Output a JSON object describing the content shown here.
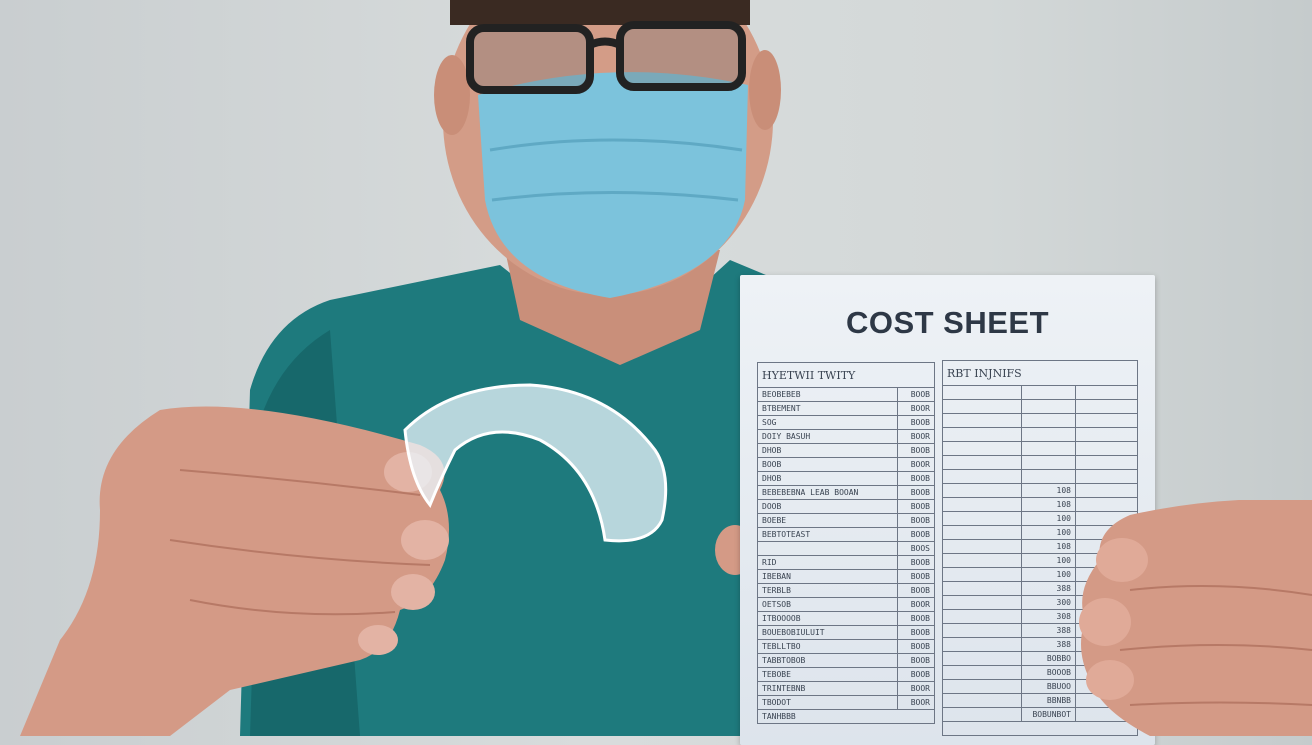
{
  "sheet": {
    "title": "COST SHEET",
    "left_table": {
      "header": "HYETWII TWITY",
      "rows": [
        {
          "label": "BEOBEBEB",
          "value": "BOOB"
        },
        {
          "label": "BTBEMENT",
          "value": "BOOR"
        },
        {
          "label": "SOG",
          "value": "BOOB"
        },
        {
          "label": "DOIY BASUH",
          "value": "BOOR"
        },
        {
          "label": "DHOB",
          "value": "BOOB"
        },
        {
          "label": "BOOB",
          "value": "BOOR"
        },
        {
          "label": "DHOB",
          "value": "BOOB"
        },
        {
          "label": "BEBEBEBNA LEAB BOOAN",
          "value": "BOOB"
        },
        {
          "label": "DOOB",
          "value": "BOOB"
        },
        {
          "label": "BOEBE",
          "value": "BOOB"
        },
        {
          "label": "BEBTOTEAST",
          "value": "BOOB"
        },
        {
          "label": "",
          "value": "BOOS"
        },
        {
          "label": "RID",
          "value": "BOOB"
        },
        {
          "label": "IBEBAN",
          "value": "BOOB"
        },
        {
          "label": "TERBLB",
          "value": "BOOB"
        },
        {
          "label": "OETSOB",
          "value": "BOOR"
        },
        {
          "label": "ITBOOOOB",
          "value": "BOOB"
        },
        {
          "label": "BOUEBOBIULUIT",
          "value": "BOOB"
        },
        {
          "label": "TEBLLTBO",
          "value": "BOOB"
        },
        {
          "label": "TABBTOBOB",
          "value": "BOOB"
        },
        {
          "label": "TEBOBE",
          "value": "BOOB"
        },
        {
          "label": "TRINTEBNB",
          "value": "BOOR"
        },
        {
          "label": "TBODOT",
          "value": "BOOR"
        }
      ],
      "footer": "TANHBBB"
    },
    "right_table": {
      "header": "RBT INJNIFS",
      "values": [
        "",
        "",
        "",
        "",
        "",
        "",
        "",
        "108",
        "108",
        "100",
        "100",
        "108",
        "100",
        "100",
        "388",
        "300",
        "308",
        "388",
        "388",
        "BOBBO",
        "BOOOB",
        "BBUOO",
        "BBNBB",
        "BOBUNBOT"
      ]
    }
  },
  "colors": {
    "scrubs": "#1e7a7d",
    "mask": "#7cc3dc",
    "background": "#d4d9da",
    "skin": "#d9a08a"
  }
}
